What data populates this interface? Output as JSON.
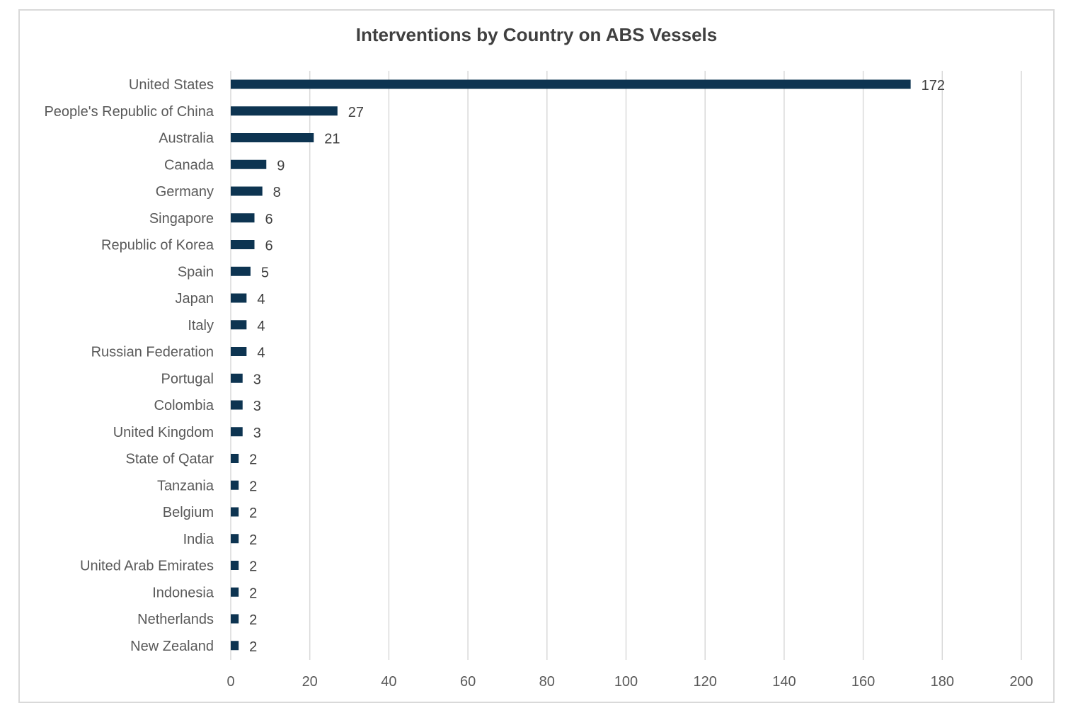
{
  "chart_data": {
    "type": "bar",
    "orientation": "horizontal",
    "title": "Interventions by Country on ABS Vessels",
    "categories": [
      "United States",
      "People's Republic of China",
      "Australia",
      "Canada",
      "Germany",
      "Singapore",
      "Republic of Korea",
      "Spain",
      "Japan",
      "Italy",
      "Russian Federation",
      "Portugal",
      "Colombia",
      "United Kingdom",
      "State of Qatar",
      "Tanzania",
      "Belgium",
      "India",
      "United Arab Emirates",
      "Indonesia",
      "Netherlands",
      "New Zealand"
    ],
    "values": [
      172,
      27,
      21,
      9,
      8,
      6,
      6,
      5,
      4,
      4,
      4,
      3,
      3,
      3,
      2,
      2,
      2,
      2,
      2,
      2,
      2,
      2
    ],
    "xlim": [
      0,
      200
    ],
    "xticks": [
      "0",
      "20",
      "40",
      "60",
      "80",
      "100",
      "120",
      "140",
      "160",
      "180",
      "200"
    ],
    "grid": "vertical",
    "legend": "none",
    "data_labels": true,
    "bar_color": "#0d3451"
  }
}
